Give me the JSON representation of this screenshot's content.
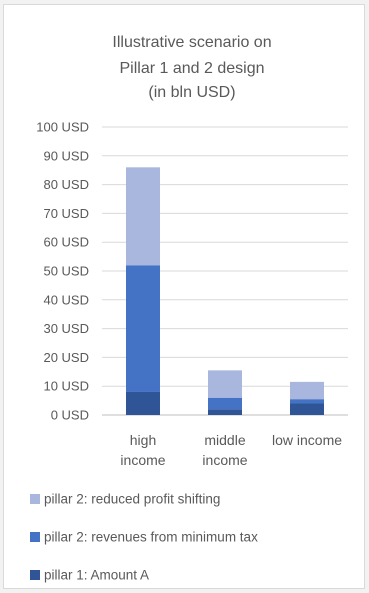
{
  "chart_data": {
    "type": "bar",
    "stacked": true,
    "title_lines": [
      "Illustrative scenario on",
      "Pillar 1 and 2 design",
      "(in bln USD)"
    ],
    "categories": [
      [
        "high",
        "income"
      ],
      [
        "middle",
        "income"
      ],
      [
        "low income"
      ]
    ],
    "y_ticks": [
      "0 USD",
      "10 USD",
      "20 USD",
      "30 USD",
      "40 USD",
      "50 USD",
      "60 USD",
      "70 USD",
      "80 USD",
      "90 USD",
      "100 USD"
    ],
    "ylim": [
      0,
      100
    ],
    "grid": true,
    "legend_position": "bottom",
    "series": [
      {
        "name": "pillar 1: Amount A",
        "color": "#2f5597",
        "values": [
          8,
          2,
          4
        ]
      },
      {
        "name": "pillar 2: revenues from minimum tax",
        "color": "#4472c4",
        "values": [
          44,
          4,
          1.5
        ]
      },
      {
        "name": "pillar 2: reduced profit shifting",
        "color": "#a9b6dd",
        "values": [
          34,
          9.5,
          6
        ]
      }
    ],
    "legend_order": [
      2,
      1,
      0
    ]
  }
}
